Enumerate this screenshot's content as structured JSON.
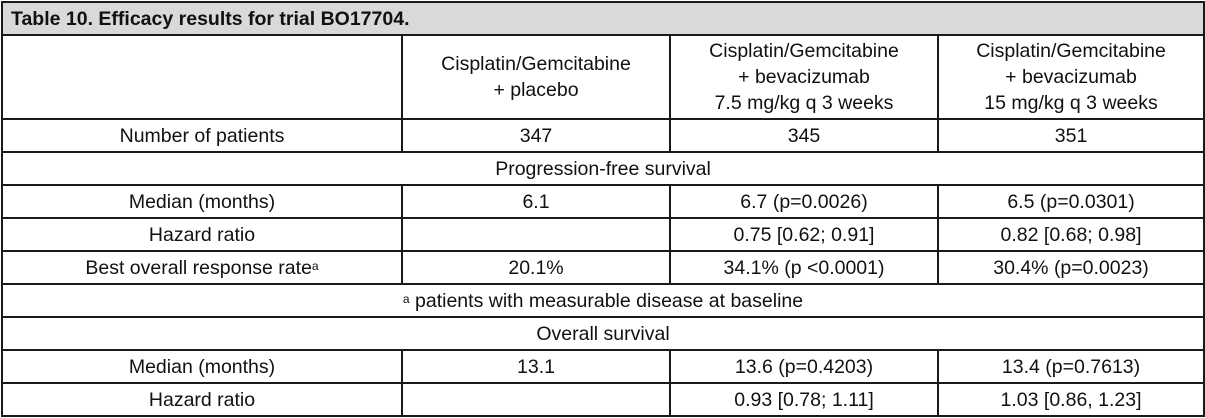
{
  "caption": "Table 10. Efficacy results for trial BO17704.",
  "columns": [
    {
      "line1": "Cisplatin/Gemcitabine",
      "line2": "+ placebo",
      "line3": ""
    },
    {
      "line1": "Cisplatin/Gemcitabine",
      "line2": "+ bevacizumab",
      "line3": "7.5 mg/kg q 3 weeks"
    },
    {
      "line1": "Cisplatin/Gemcitabine",
      "line2": "+ bevacizumab",
      "line3": "15 mg/kg q 3 weeks"
    }
  ],
  "patients": {
    "label": "Number of patients",
    "values": [
      "347",
      "345",
      "351"
    ]
  },
  "pfs": {
    "section": "Progression-free survival",
    "median": {
      "label": "Median (months)",
      "values": [
        "6.1",
        "6.7 (p=0.0026)",
        "6.5 (p=0.0301)"
      ]
    },
    "hazard": {
      "label": "Hazard ratio",
      "values": [
        "",
        "0.75 [0.62; 0.91]",
        "0.82 [0.68; 0.98]"
      ]
    },
    "response": {
      "label": "Best overall response rate",
      "sup": "a",
      "values": [
        "20.1%",
        "34.1% (p <0.0001)",
        "30.4% (p=0.0023)"
      ]
    },
    "footnote_sup": "a",
    "footnote": " patients with measurable disease at baseline"
  },
  "os": {
    "section": "Overall survival",
    "median": {
      "label": "Median (months)",
      "values": [
        "13.1",
        "13.6 (p=0.4203)",
        "13.4 (p=0.7613)"
      ]
    },
    "hazard": {
      "label": "Hazard ratio",
      "values": [
        "",
        "0.93 [0.78; 1.11]",
        "1.03 [0.86, 1.23]"
      ]
    }
  }
}
